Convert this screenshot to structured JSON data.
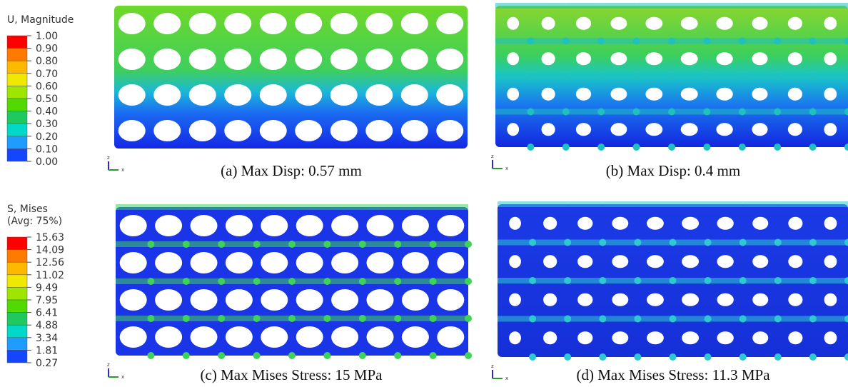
{
  "legends": [
    {
      "title": [
        "U, Magnitude"
      ],
      "levels": [
        "1.00",
        "0.90",
        "0.80",
        "0.70",
        "0.60",
        "0.50",
        "0.40",
        "0.30",
        "0.20",
        "0.10",
        "0.00"
      ],
      "colors": [
        "#ff0000",
        "#ff7a00",
        "#ffb800",
        "#f0e800",
        "#9ee600",
        "#52d900",
        "#20c860",
        "#00d8c8",
        "#1e9cff",
        "#1446ff"
      ]
    },
    {
      "title": [
        "S, Mises",
        "(Avg: 75%)"
      ],
      "levels": [
        "15.63",
        "14.09",
        "12.56",
        "11.02",
        "9.49",
        "7.95",
        "6.41",
        "4.88",
        "3.34",
        "1.81",
        "0.27"
      ],
      "colors": [
        "#ff0000",
        "#ff7a00",
        "#ffb800",
        "#f0e800",
        "#9ee600",
        "#52d900",
        "#20c860",
        "#00d8c8",
        "#1e9cff",
        "#1446ff"
      ]
    }
  ],
  "triad": {
    "z": "z",
    "x": "x"
  },
  "captions": [
    "(a) Max Disp: 0.57 mm",
    "(b) Max Disp: 0.4 mm",
    "(c) Max Mises Stress: 15 MPa",
    "(d) Max Mises Stress: 11.3 MPa"
  ]
}
